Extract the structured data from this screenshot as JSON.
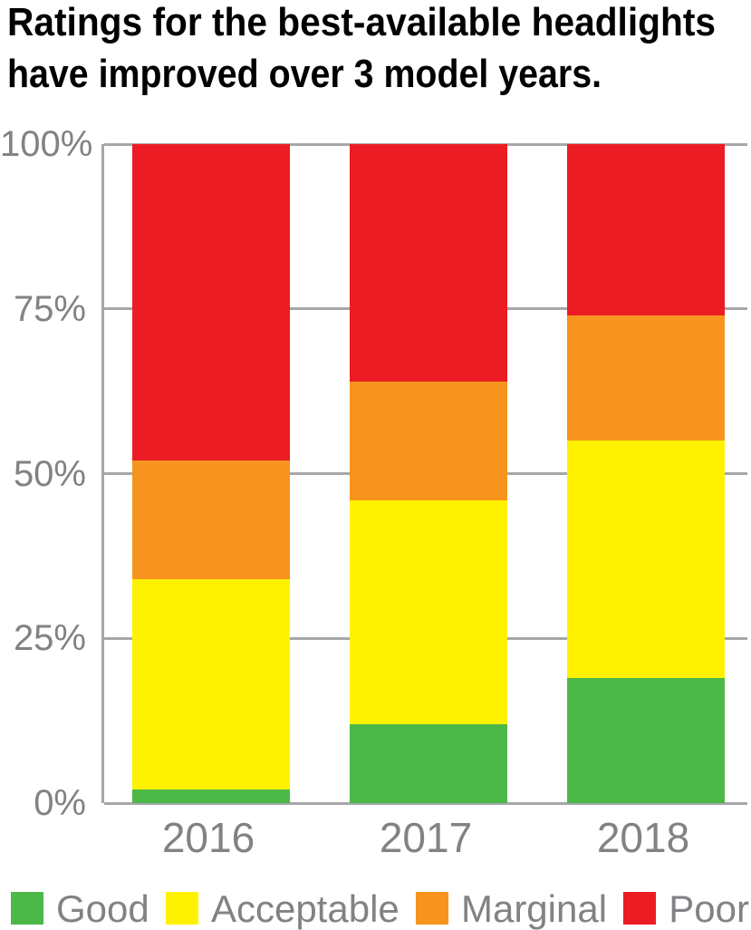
{
  "title": {
    "line1": "Ratings for the best-available headlights",
    "line2": "have improved over 3 model years."
  },
  "chart_data": {
    "type": "bar",
    "stacked": true,
    "orientation": "vertical",
    "categories": [
      "2016",
      "2017",
      "2018"
    ],
    "series": [
      {
        "name": "Good",
        "color": "#4cb848",
        "values": [
          2,
          12,
          19
        ]
      },
      {
        "name": "Acceptable",
        "color": "#fff200",
        "values": [
          32,
          34,
          36
        ]
      },
      {
        "name": "Marginal",
        "color": "#f7941e",
        "values": [
          18,
          18,
          19
        ]
      },
      {
        "name": "Poor",
        "color": "#ec1c24",
        "values": [
          48,
          36,
          26
        ]
      }
    ],
    "ylim": [
      0,
      100
    ],
    "yticks": [
      {
        "value": 0,
        "label": "0%"
      },
      {
        "value": 25,
        "label": "25%"
      },
      {
        "value": 50,
        "label": "50%"
      },
      {
        "value": 75,
        "label": "75%"
      },
      {
        "value": 100,
        "label": "100%"
      }
    ],
    "grid": true,
    "legend_position": "bottom",
    "legend": [
      "Good",
      "Acceptable",
      "Marginal",
      "Poor"
    ]
  },
  "colors": {
    "title_text": "#010101",
    "axis_line": "#a5a7aa",
    "gridline": "#a5a7aa",
    "tick_label_text": "#808285",
    "legend_text": "#808285",
    "background": "#ffffff",
    "good": "#4cb848",
    "acceptable": "#fff200",
    "marginal": "#f7941e",
    "poor": "#ec1c24"
  }
}
